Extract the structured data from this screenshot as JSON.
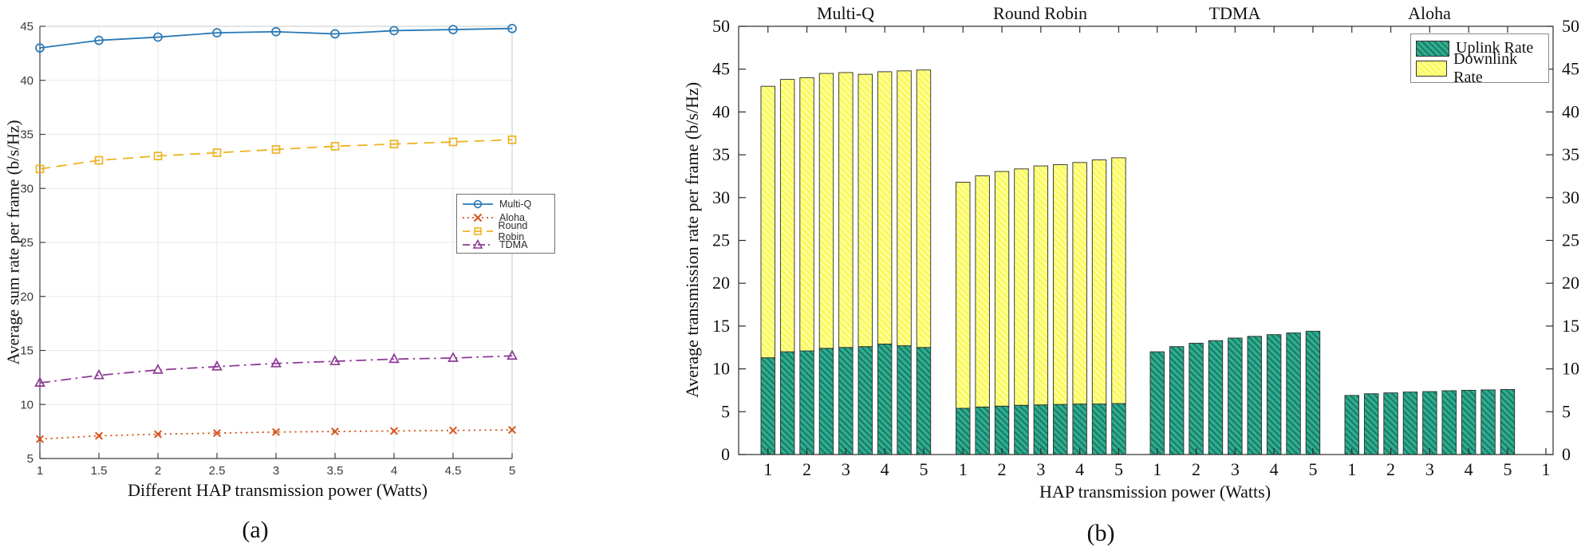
{
  "figure": {
    "caption_a": "(a)",
    "caption_b": "(b)"
  },
  "chart_data": [
    {
      "id": "a",
      "type": "line",
      "xlabel": "Different HAP transmission power (Watts)",
      "ylabel": "Average sum rate per frame (b/s/Hz)",
      "xlim": [
        1,
        5
      ],
      "ylim": [
        5,
        45
      ],
      "grid": true,
      "legend_position": "right-middle",
      "xticks": [
        1,
        1.5,
        2,
        2.5,
        3,
        3.5,
        4,
        4.5,
        5
      ],
      "xtick_labels": [
        "1",
        "1.5",
        "2",
        "2.5",
        "3",
        "3.5",
        "4",
        "4.5",
        "5"
      ],
      "yticks": [
        5,
        10,
        15,
        20,
        25,
        30,
        35,
        40,
        45
      ],
      "ytick_labels": [
        "5",
        "10",
        "15",
        "20",
        "25",
        "30",
        "35",
        "40",
        "45"
      ],
      "x": [
        1,
        1.5,
        2,
        2.5,
        3,
        3.5,
        4,
        4.5,
        5
      ],
      "series": [
        {
          "name": "Multi-Q",
          "color": "#2878b5",
          "line": "solid",
          "marker": "circle",
          "values": [
            43.0,
            43.7,
            44.0,
            44.4,
            44.5,
            44.3,
            44.6,
            44.7,
            44.8
          ]
        },
        {
          "name": "Aloha",
          "color": "#d6541e",
          "line": "dotted",
          "marker": "x",
          "values": [
            6.8,
            7.1,
            7.25,
            7.35,
            7.45,
            7.5,
            7.55,
            7.6,
            7.65
          ]
        },
        {
          "name": "Round Robin",
          "color": "#eeb321",
          "line": "dashed",
          "marker": "square",
          "values": [
            31.8,
            32.6,
            33.0,
            33.3,
            33.6,
            33.9,
            34.1,
            34.3,
            34.5
          ]
        },
        {
          "name": "TDMA",
          "color": "#8d3a96",
          "line": "dashdot",
          "marker": "triangle",
          "values": [
            12.0,
            12.7,
            13.2,
            13.5,
            13.8,
            14.0,
            14.2,
            14.3,
            14.5
          ]
        }
      ]
    },
    {
      "id": "b",
      "type": "bar",
      "subtype": "stacked",
      "xlabel": "HAP transmission power (Watts)",
      "ylabel": "Average transmission rate per frame (b/s/Hz)",
      "ylim": [
        0,
        50
      ],
      "grid": false,
      "legend_position": "top-right",
      "yticks": [
        0,
        5,
        10,
        15,
        20,
        25,
        30,
        35,
        40,
        45,
        50
      ],
      "ytick_labels": [
        "0",
        "5",
        "10",
        "15",
        "20",
        "25",
        "30",
        "35",
        "40",
        "45",
        "50"
      ],
      "group_labels": [
        "Multi-Q",
        "Round Robin",
        "TDMA",
        "Aloha"
      ],
      "powers": [
        1,
        1.5,
        2,
        2.5,
        3,
        3.5,
        4,
        4.5,
        5
      ],
      "xtick_labels": [
        "1",
        "2",
        "3",
        "4",
        "5"
      ],
      "trailing_xtick_label": "1",
      "bar_edge_color": "#2b2b2b",
      "series": [
        {
          "name": "Uplink Rate",
          "color": "#2fae91",
          "hatch_color": "#1a7a63",
          "groups": [
            [
              11.3,
              12.0,
              12.1,
              12.4,
              12.5,
              12.6,
              12.9,
              12.7,
              12.5
            ],
            [
              5.4,
              5.55,
              5.65,
              5.75,
              5.8,
              5.85,
              5.9,
              5.9,
              5.95
            ],
            [
              12.0,
              12.6,
              13.0,
              13.3,
              13.6,
              13.8,
              14.0,
              14.2,
              14.4
            ],
            [
              6.9,
              7.1,
              7.2,
              7.3,
              7.35,
              7.45,
              7.5,
              7.55,
              7.6
            ]
          ]
        },
        {
          "name": "Downlink Rate",
          "color": "#fafa5e",
          "hatch_color": "#ffffaa",
          "groups": [
            [
              31.7,
              31.8,
              31.9,
              32.1,
              32.1,
              31.8,
              31.8,
              32.1,
              32.4
            ],
            [
              26.4,
              27.0,
              27.4,
              27.6,
              27.9,
              28.0,
              28.2,
              28.5,
              28.7
            ],
            [
              0,
              0,
              0,
              0,
              0,
              0,
              0,
              0,
              0
            ],
            [
              0,
              0,
              0,
              0,
              0,
              0,
              0,
              0,
              0
            ]
          ]
        }
      ]
    }
  ]
}
